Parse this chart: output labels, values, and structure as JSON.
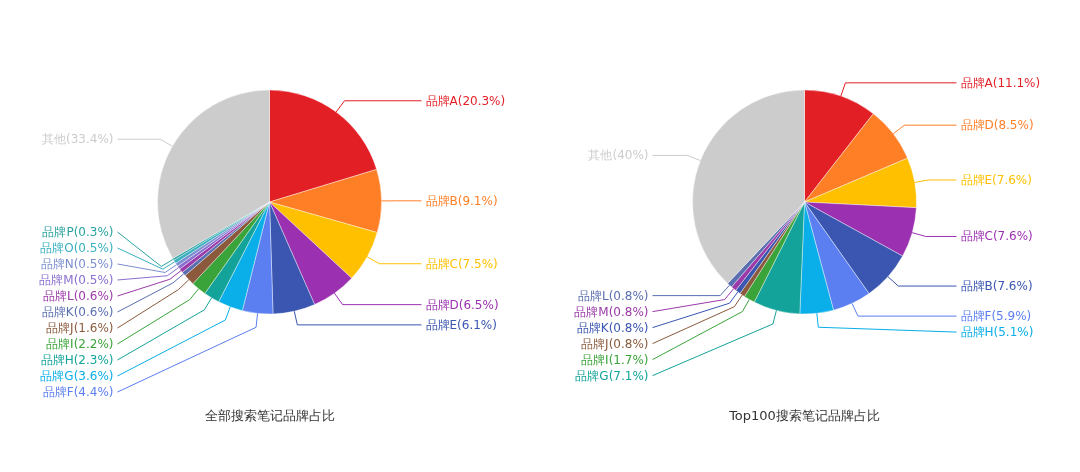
{
  "chart_data": [
    {
      "type": "pie",
      "title": "全部搜索笔记品牌占比",
      "categories": [
        "品牌A",
        "品牌B",
        "品牌C",
        "品牌D",
        "品牌E",
        "品牌F",
        "品牌G",
        "品牌H",
        "品牌I",
        "品牌J",
        "品牌K",
        "品牌L",
        "品牌M",
        "品牌N",
        "品牌O",
        "品牌P",
        "其他"
      ],
      "values": [
        20.3,
        9.1,
        7.5,
        6.5,
        6.1,
        4.4,
        3.6,
        2.3,
        2.2,
        1.6,
        0.6,
        0.6,
        0.5,
        0.5,
        0.5,
        0.3,
        33.4
      ],
      "colors": [
        "#e31f26",
        "#ff7f27",
        "#ffc000",
        "#9b30b0",
        "#3a56b0",
        "#5b7ff0",
        "#0aaee8",
        "#14a39a",
        "#3aa43a",
        "#8b5a3c",
        "#5a6fb0",
        "#9b3aa8",
        "#8a6fd0",
        "#7b8fd0",
        "#3ab0c0",
        "#2aa3a0",
        "#cccccc"
      ],
      "value_labels": [
        "(20.3%)",
        "(9.1%)",
        "(7.5%)",
        "(6.5%)",
        "(6.1%)",
        "(4.4%)",
        "(3.6%)",
        "(2.3%)",
        "(2.2%)",
        "(1.6%)",
        "(0.6%)",
        "(0.6%)",
        "(0.5%)",
        "(0.5%)",
        "(0.5%)",
        "(0.3%)",
        "(33.4%)"
      ]
    },
    {
      "type": "pie",
      "title": "Top100搜索笔记品牌占比",
      "categories": [
        "品牌A",
        "品牌D",
        "品牌E",
        "品牌C",
        "品牌B",
        "品牌F",
        "品牌H",
        "品牌G",
        "品牌I",
        "品牌J",
        "品牌K",
        "品牌M",
        "品牌L",
        "其他"
      ],
      "values": [
        11.1,
        8.5,
        7.6,
        7.6,
        7.6,
        5.9,
        5.1,
        7.1,
        1.7,
        0.8,
        0.8,
        0.8,
        0.8,
        40
      ],
      "colors": [
        "#e31f26",
        "#ff7f27",
        "#ffc000",
        "#9b30b0",
        "#3a56b0",
        "#5b7ff0",
        "#0aaee8",
        "#14a39a",
        "#3aa43a",
        "#8b5a3c",
        "#3a56b0",
        "#9b3aa8",
        "#5a6fb0",
        "#cccccc"
      ],
      "value_labels": [
        "(11.1%)",
        "(8.5%)",
        "(7.6%)",
        "(7.6%)",
        "(7.6%)",
        "(5.9%)",
        "(5.1%)",
        "(7.1%)",
        "(1.7%)",
        "(0.8%)",
        "(0.8%)",
        "(0.8%)",
        "(0.8%)",
        "(40%)"
      ]
    }
  ]
}
